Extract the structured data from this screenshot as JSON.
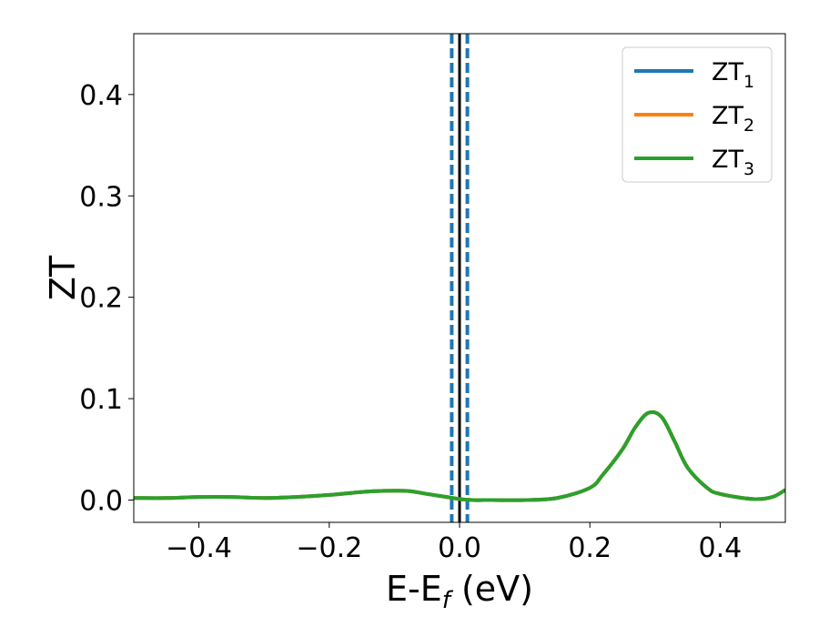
{
  "chart_data": {
    "type": "line",
    "xlabel_parts": {
      "base": "E-E",
      "sub": "f",
      "tail": " (eV)"
    },
    "ylabel": "ZT",
    "xlim": [
      -0.5,
      0.5
    ],
    "ylim": [
      -0.022,
      0.46
    ],
    "xticks": [
      {
        "value": -0.4,
        "label": "−0.4"
      },
      {
        "value": -0.2,
        "label": "−0.2"
      },
      {
        "value": 0.0,
        "label": "0.0"
      },
      {
        "value": 0.2,
        "label": "0.2"
      },
      {
        "value": 0.4,
        "label": "0.4"
      }
    ],
    "yticks": [
      {
        "value": 0.0,
        "label": "0.0"
      },
      {
        "value": 0.1,
        "label": "0.1"
      },
      {
        "value": 0.2,
        "label": "0.2"
      },
      {
        "value": 0.3,
        "label": "0.3"
      },
      {
        "value": 0.4,
        "label": "0.4"
      }
    ],
    "legend_position": "top-right",
    "series": [
      {
        "name": "ZT",
        "sub": "1",
        "color": "#1f77b4",
        "x": [
          -0.5,
          -0.45,
          -0.4,
          -0.35,
          -0.3,
          -0.25,
          -0.2,
          -0.15,
          -0.12,
          -0.08,
          -0.05,
          -0.02,
          0.0,
          0.02,
          0.05,
          0.1,
          0.15,
          0.2,
          0.22,
          0.25,
          0.27,
          0.29,
          0.31,
          0.33,
          0.35,
          0.38,
          0.4,
          0.45,
          0.48,
          0.5
        ],
        "y": [
          0.002,
          0.002,
          0.003,
          0.003,
          0.002,
          0.003,
          0.005,
          0.008,
          0.009,
          0.009,
          0.006,
          0.003,
          0.001,
          0.0,
          0.0,
          0.0,
          0.002,
          0.012,
          0.025,
          0.05,
          0.072,
          0.086,
          0.082,
          0.058,
          0.032,
          0.012,
          0.006,
          0.001,
          0.003,
          0.01
        ]
      },
      {
        "name": "ZT",
        "sub": "2",
        "color": "#ff7f0e",
        "x": [
          -0.5,
          -0.45,
          -0.4,
          -0.35,
          -0.3,
          -0.25,
          -0.2,
          -0.15,
          -0.12,
          -0.08,
          -0.05,
          -0.02,
          0.0,
          0.02,
          0.05,
          0.1,
          0.15,
          0.2,
          0.22,
          0.25,
          0.27,
          0.29,
          0.31,
          0.33,
          0.35,
          0.38,
          0.4,
          0.45,
          0.48,
          0.5
        ],
        "y": [
          0.002,
          0.002,
          0.003,
          0.003,
          0.002,
          0.003,
          0.005,
          0.008,
          0.009,
          0.009,
          0.006,
          0.003,
          0.001,
          0.0,
          0.0,
          0.0,
          0.002,
          0.012,
          0.025,
          0.05,
          0.072,
          0.086,
          0.082,
          0.058,
          0.032,
          0.012,
          0.006,
          0.001,
          0.003,
          0.01
        ]
      },
      {
        "name": "ZT",
        "sub": "3",
        "color": "#2ca02c",
        "x": [
          -0.5,
          -0.45,
          -0.4,
          -0.35,
          -0.3,
          -0.25,
          -0.2,
          -0.15,
          -0.12,
          -0.08,
          -0.05,
          -0.02,
          0.0,
          0.02,
          0.05,
          0.1,
          0.15,
          0.2,
          0.22,
          0.25,
          0.27,
          0.29,
          0.31,
          0.33,
          0.35,
          0.38,
          0.4,
          0.45,
          0.48,
          0.5
        ],
        "y": [
          0.002,
          0.002,
          0.003,
          0.003,
          0.002,
          0.003,
          0.005,
          0.008,
          0.009,
          0.009,
          0.006,
          0.003,
          0.001,
          0.0,
          0.0,
          0.0,
          0.002,
          0.012,
          0.025,
          0.05,
          0.072,
          0.086,
          0.082,
          0.058,
          0.032,
          0.012,
          0.006,
          0.001,
          0.003,
          0.01
        ]
      }
    ],
    "vlines": [
      {
        "x": -0.012,
        "color": "#1f77b4",
        "style": "dashed"
      },
      {
        "x": 0.0,
        "color": "#000000",
        "style": "solid"
      },
      {
        "x": 0.012,
        "color": "#1f77b4",
        "style": "dashed"
      }
    ]
  }
}
